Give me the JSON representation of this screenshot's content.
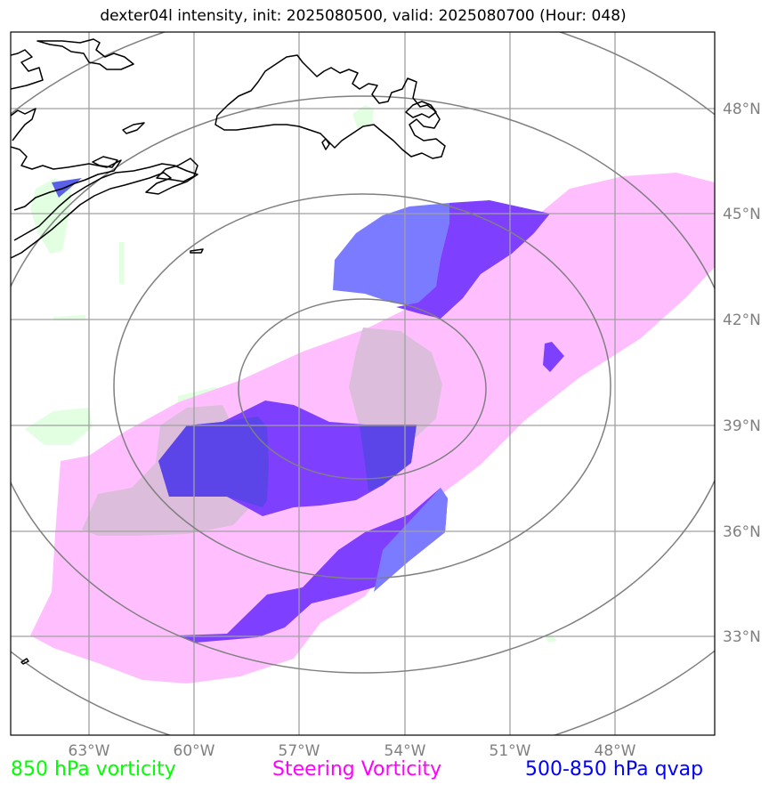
{
  "title": "dexter04l intensity, init: 2025080500, valid: 2025080700 (Hour: 048)",
  "lat_labels": [
    "48°N",
    "45°N",
    "42°N",
    "39°N",
    "36°N",
    "33°N"
  ],
  "lon_labels": [
    "63°W",
    "60°W",
    "57°W",
    "54°W",
    "51°W",
    "48°W"
  ],
  "legend": {
    "vorticity_850": "850 hPa vorticity",
    "steering_vorticity": "Steering Vorticity",
    "qvap": "500-850 hPa qvap"
  },
  "colors": {
    "vorticity_850": "#00ff00",
    "steering_vorticity": "#ff00ff",
    "qvap": "#0000ff",
    "steering_fill": "#ffbfff",
    "qvap_fill_light": "#7b7bff",
    "qvap_fill_dark": "#7f3fff",
    "vort_fill": "#e2ffe2",
    "range_rings": "#808080",
    "gridlines": "#a0a0a0",
    "coastline": "#000000"
  }
}
